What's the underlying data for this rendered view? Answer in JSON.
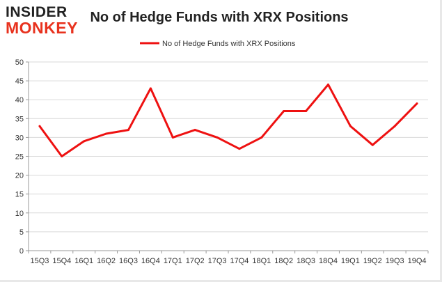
{
  "logo": {
    "line1": "INSIDER",
    "line2": "MONKEY"
  },
  "chart_data": {
    "type": "line",
    "title": "No of Hedge Funds with XRX Positions",
    "xlabel": "",
    "ylabel": "",
    "categories": [
      "15Q3",
      "15Q4",
      "16Q1",
      "16Q2",
      "16Q3",
      "16Q4",
      "17Q1",
      "17Q2",
      "17Q3",
      "17Q4",
      "18Q1",
      "18Q2",
      "18Q3",
      "18Q4",
      "19Q1",
      "19Q2",
      "19Q3",
      "19Q4"
    ],
    "series": [
      {
        "name": "No of Hedge Funds with XRX Positions",
        "values": [
          33,
          25,
          29,
          31,
          32,
          43,
          30,
          32,
          30,
          27,
          30,
          37,
          37,
          44,
          33,
          28,
          33,
          39
        ],
        "color": "#ee1111"
      }
    ],
    "ylim": [
      0,
      50
    ],
    "yticks": [
      0,
      5,
      10,
      15,
      20,
      25,
      30,
      35,
      40,
      45,
      50
    ],
    "grid": true,
    "legend": "top-center"
  }
}
